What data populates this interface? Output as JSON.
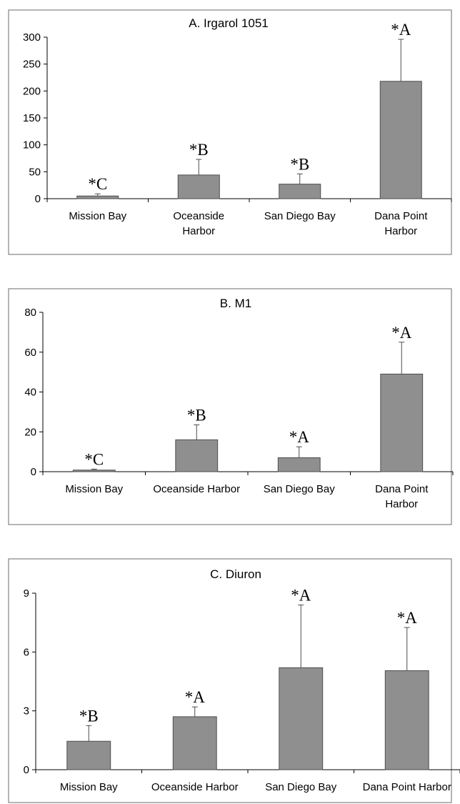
{
  "chart_data": [
    {
      "type": "bar",
      "title": "A. Irgarol 1051",
      "categories": [
        [
          "Mission Bay"
        ],
        [
          "Oceanside",
          "Harbor"
        ],
        [
          "San Diego Bay"
        ],
        [
          "Dana Point",
          "Harbor"
        ]
      ],
      "values": [
        5,
        44,
        27,
        218
      ],
      "error": [
        4,
        29,
        19,
        78
      ],
      "significance": [
        "*C",
        "*B",
        "*B",
        "*A"
      ],
      "ylim": [
        0,
        300
      ],
      "yticks": [
        0,
        50,
        100,
        150,
        200,
        250,
        300
      ],
      "xlabel": "",
      "ylabel": ""
    },
    {
      "type": "bar",
      "title": "B. M1",
      "categories": [
        [
          "Mission Bay"
        ],
        [
          "Oceanside Harbor"
        ],
        [
          "San Diego Bay"
        ],
        [
          "Dana Point",
          "Harbor"
        ]
      ],
      "values": [
        0.8,
        16,
        7,
        49
      ],
      "error": [
        0.5,
        7.5,
        5.5,
        16
      ],
      "significance": [
        "*C",
        "*B",
        "*A",
        "*A"
      ],
      "ylim": [
        0,
        80
      ],
      "yticks": [
        0,
        20,
        40,
        60,
        80
      ],
      "xlabel": "",
      "ylabel": ""
    },
    {
      "type": "bar",
      "title": "C. Diuron",
      "categories": [
        [
          "Mission Bay"
        ],
        [
          "Oceanside Harbor"
        ],
        [
          "San Diego Bay"
        ],
        [
          "Dana Point Harbor"
        ]
      ],
      "values": [
        1.45,
        2.7,
        5.2,
        5.05
      ],
      "error": [
        0.8,
        0.5,
        3.2,
        2.2
      ],
      "significance": [
        "*B",
        "*A",
        "*A",
        "*A"
      ],
      "ylim": [
        0,
        9
      ],
      "yticks": [
        0,
        3,
        6,
        9
      ],
      "xlabel": "",
      "ylabel": ""
    }
  ],
  "colors": {
    "bar_fill": "#8f8f8f",
    "bar_stroke": "#4d4d4d",
    "frame": "#6b6b6b",
    "axis": "#000000"
  }
}
